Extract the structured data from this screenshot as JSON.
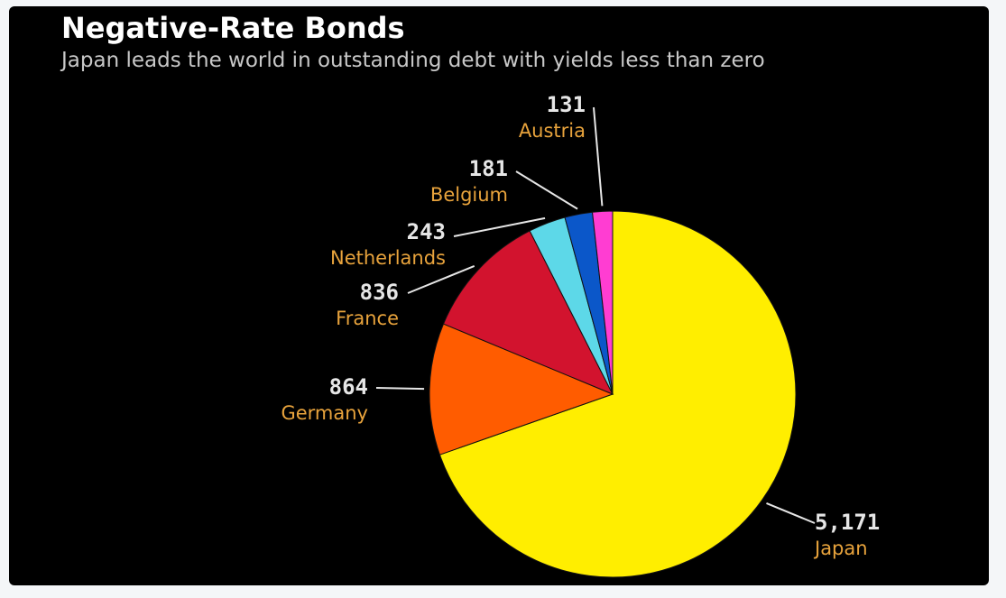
{
  "chart_data": {
    "type": "pie",
    "title": "Negative-Rate Bonds",
    "subtitle": "Japan leads the world in outstanding debt with yields less than zero",
    "slices": [
      {
        "name": "Japan",
        "value": 5171,
        "value_label": "5,171",
        "color": "#ffee00"
      },
      {
        "name": "Germany",
        "value": 864,
        "value_label": "864",
        "color": "#ff5c00"
      },
      {
        "name": "France",
        "value": 836,
        "value_label": "836",
        "color": "#d2132e"
      },
      {
        "name": "Netherlands",
        "value": 243,
        "value_label": "243",
        "color": "#5dd8e8"
      },
      {
        "name": "Belgium",
        "value": 181,
        "value_label": "181",
        "color": "#0b57c9"
      },
      {
        "name": "Austria",
        "value": 131,
        "value_label": "131",
        "color": "#ff3dd2"
      }
    ],
    "direction": "clockwise from top",
    "legend": "none"
  }
}
